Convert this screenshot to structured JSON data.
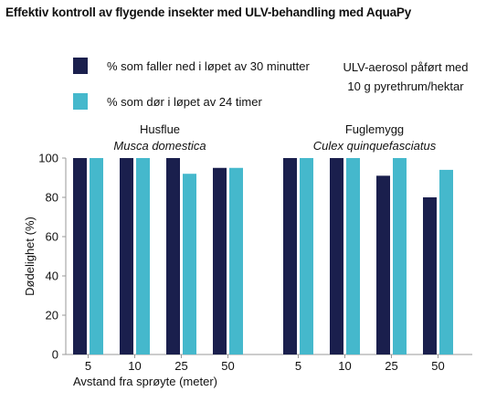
{
  "title": "Effektiv kontroll av flygende insekter med ULV-behandling med AquaPy",
  "note": [
    "ULV-aerosol påført med",
    "10 g pyrethrum/hektar"
  ],
  "colors": {
    "series1": "#1a1f4d",
    "series2": "#45b8cc",
    "axis": "#999999"
  },
  "chart_data": {
    "type": "bar",
    "xlabel": "Avstand fra sprøyte (meter)",
    "ylabel": "Dødelighet (%)",
    "ylim": [
      0,
      100
    ],
    "yticks": [
      0,
      20,
      40,
      60,
      80,
      100
    ],
    "legend_position": "top-left",
    "groups": [
      {
        "title": "Husflue",
        "subtitle": "Musca domestica",
        "categories": [
          "5",
          "10",
          "25",
          "50"
        ]
      },
      {
        "title": "Fuglemygg",
        "subtitle": "Culex quinquefasciatus",
        "categories": [
          "5",
          "10",
          "25",
          "50"
        ]
      }
    ],
    "series": [
      {
        "name": "% som faller ned i løpet av 30 minutter",
        "color": "#1a1f4d",
        "values": [
          [
            100,
            100,
            100,
            95
          ],
          [
            100,
            100,
            91,
            80
          ]
        ]
      },
      {
        "name": "% som dør i løpet av 24 timer",
        "color": "#45b8cc",
        "values": [
          [
            100,
            100,
            92,
            95
          ],
          [
            100,
            100,
            100,
            94
          ]
        ]
      }
    ]
  }
}
